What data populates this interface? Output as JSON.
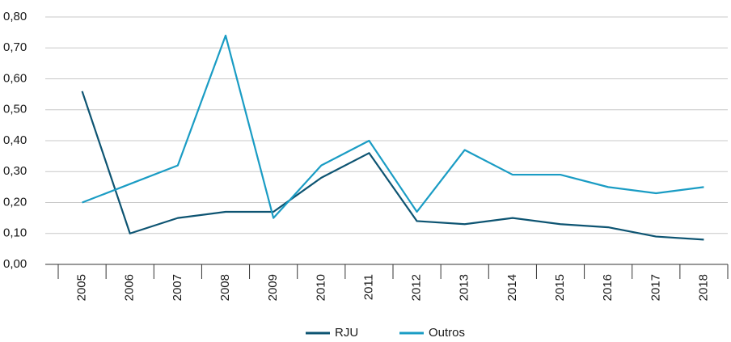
{
  "chart_data": {
    "type": "line",
    "categories": [
      "2005",
      "2006",
      "2007",
      "2008",
      "2009",
      "2010",
      "2011",
      "2012",
      "2013",
      "2014",
      "2015",
      "2016",
      "2017",
      "2018"
    ],
    "series": [
      {
        "name": "RJU",
        "color": "#0d5472",
        "values": [
          0.56,
          0.1,
          0.15,
          0.17,
          0.17,
          0.28,
          0.36,
          0.14,
          0.13,
          0.15,
          0.13,
          0.12,
          0.09,
          0.08
        ]
      },
      {
        "name": "Outros",
        "color": "#1a9cc4",
        "values": [
          0.2,
          0.26,
          0.32,
          0.74,
          0.15,
          0.32,
          0.4,
          0.17,
          0.37,
          0.29,
          0.29,
          0.25,
          0.23,
          0.25
        ]
      }
    ],
    "ylim": [
      0,
      0.8
    ],
    "yticks": [
      {
        "value": 0,
        "label": "0,00"
      },
      {
        "value": 0.1,
        "label": "0,10"
      },
      {
        "value": 0.2,
        "label": "0,20"
      },
      {
        "value": 0.3,
        "label": "0,30"
      },
      {
        "value": 0.4,
        "label": "0,40"
      },
      {
        "value": 0.5,
        "label": "0,50"
      },
      {
        "value": 0.6,
        "label": "0,60"
      },
      {
        "value": 0.7,
        "label": "0,70"
      },
      {
        "value": 0.8,
        "label": "0,80"
      }
    ],
    "grid": true
  }
}
